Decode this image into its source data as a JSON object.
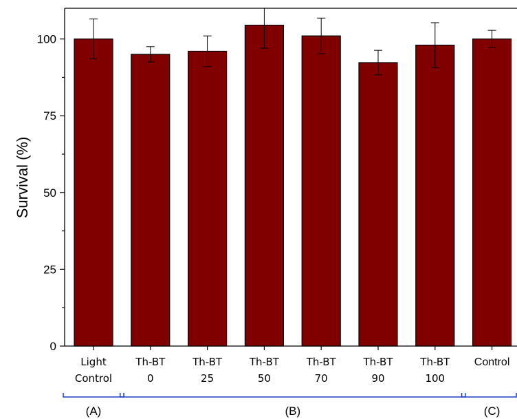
{
  "chart_data": {
    "type": "bar",
    "categories": [
      {
        "lines": [
          "Light",
          "Control"
        ]
      },
      {
        "lines": [
          "Th-BT",
          "0"
        ]
      },
      {
        "lines": [
          "Th-BT",
          "25"
        ]
      },
      {
        "lines": [
          "Th-BT",
          "50"
        ]
      },
      {
        "lines": [
          "Th-BT",
          "70"
        ]
      },
      {
        "lines": [
          "Th-BT",
          "90"
        ]
      },
      {
        "lines": [
          "Th-BT",
          "100"
        ]
      },
      {
        "lines": [
          "Control"
        ]
      }
    ],
    "values": [
      100,
      95,
      96,
      104.5,
      101,
      92.3,
      98,
      100
    ],
    "errors": [
      6.5,
      2.5,
      5,
      7.5,
      5.8,
      4,
      7.3,
      2.8
    ],
    "ylabel": "Survival (%)",
    "ylim": [
      0,
      110
    ],
    "yticks": [
      "0",
      "25",
      "50",
      "75",
      "100"
    ],
    "groups": [
      {
        "label": "(A)",
        "first": 0,
        "last": 0
      },
      {
        "label": "(B)",
        "first": 1,
        "last": 6
      },
      {
        "label": "(C)",
        "first": 7,
        "last": 7
      }
    ],
    "colors": {
      "bar": "#800000",
      "bracket": "#1f3fbf",
      "axis": "#000000"
    },
    "grid": false
  }
}
